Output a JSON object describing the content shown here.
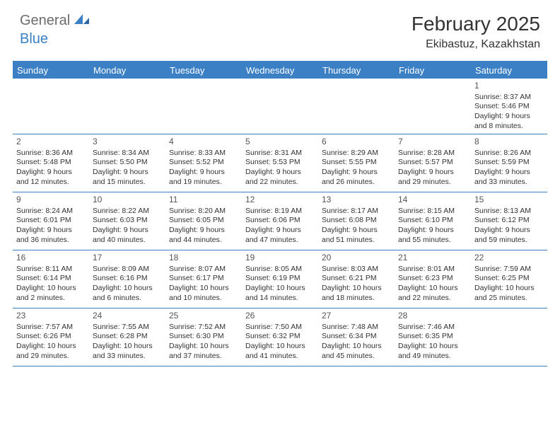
{
  "logo": {
    "text1": "General",
    "text2": "Blue"
  },
  "title": "February 2025",
  "location": "Ekibastuz, Kazakhstan",
  "colors": {
    "accent": "#3b7fc4",
    "logo_gray": "#6b6b6b",
    "text": "#333333",
    "background": "#ffffff"
  },
  "typography": {
    "title_fontsize": 28,
    "location_fontsize": 16,
    "dayheader_fontsize": 13,
    "cell_fontsize": 10.5,
    "daynum_fontsize": 12
  },
  "day_headers": [
    "Sunday",
    "Monday",
    "Tuesday",
    "Wednesday",
    "Thursday",
    "Friday",
    "Saturday"
  ],
  "weeks": [
    [
      null,
      null,
      null,
      null,
      null,
      null,
      {
        "n": "1",
        "sunrise": "8:37 AM",
        "sunset": "5:46 PM",
        "daylight": "9 hours and 8 minutes."
      }
    ],
    [
      {
        "n": "2",
        "sunrise": "8:36 AM",
        "sunset": "5:48 PM",
        "daylight": "9 hours and 12 minutes."
      },
      {
        "n": "3",
        "sunrise": "8:34 AM",
        "sunset": "5:50 PM",
        "daylight": "9 hours and 15 minutes."
      },
      {
        "n": "4",
        "sunrise": "8:33 AM",
        "sunset": "5:52 PM",
        "daylight": "9 hours and 19 minutes."
      },
      {
        "n": "5",
        "sunrise": "8:31 AM",
        "sunset": "5:53 PM",
        "daylight": "9 hours and 22 minutes."
      },
      {
        "n": "6",
        "sunrise": "8:29 AM",
        "sunset": "5:55 PM",
        "daylight": "9 hours and 26 minutes."
      },
      {
        "n": "7",
        "sunrise": "8:28 AM",
        "sunset": "5:57 PM",
        "daylight": "9 hours and 29 minutes."
      },
      {
        "n": "8",
        "sunrise": "8:26 AM",
        "sunset": "5:59 PM",
        "daylight": "9 hours and 33 minutes."
      }
    ],
    [
      {
        "n": "9",
        "sunrise": "8:24 AM",
        "sunset": "6:01 PM",
        "daylight": "9 hours and 36 minutes."
      },
      {
        "n": "10",
        "sunrise": "8:22 AM",
        "sunset": "6:03 PM",
        "daylight": "9 hours and 40 minutes."
      },
      {
        "n": "11",
        "sunrise": "8:20 AM",
        "sunset": "6:05 PM",
        "daylight": "9 hours and 44 minutes."
      },
      {
        "n": "12",
        "sunrise": "8:19 AM",
        "sunset": "6:06 PM",
        "daylight": "9 hours and 47 minutes."
      },
      {
        "n": "13",
        "sunrise": "8:17 AM",
        "sunset": "6:08 PM",
        "daylight": "9 hours and 51 minutes."
      },
      {
        "n": "14",
        "sunrise": "8:15 AM",
        "sunset": "6:10 PM",
        "daylight": "9 hours and 55 minutes."
      },
      {
        "n": "15",
        "sunrise": "8:13 AM",
        "sunset": "6:12 PM",
        "daylight": "9 hours and 59 minutes."
      }
    ],
    [
      {
        "n": "16",
        "sunrise": "8:11 AM",
        "sunset": "6:14 PM",
        "daylight": "10 hours and 2 minutes."
      },
      {
        "n": "17",
        "sunrise": "8:09 AM",
        "sunset": "6:16 PM",
        "daylight": "10 hours and 6 minutes."
      },
      {
        "n": "18",
        "sunrise": "8:07 AM",
        "sunset": "6:17 PM",
        "daylight": "10 hours and 10 minutes."
      },
      {
        "n": "19",
        "sunrise": "8:05 AM",
        "sunset": "6:19 PM",
        "daylight": "10 hours and 14 minutes."
      },
      {
        "n": "20",
        "sunrise": "8:03 AM",
        "sunset": "6:21 PM",
        "daylight": "10 hours and 18 minutes."
      },
      {
        "n": "21",
        "sunrise": "8:01 AM",
        "sunset": "6:23 PM",
        "daylight": "10 hours and 22 minutes."
      },
      {
        "n": "22",
        "sunrise": "7:59 AM",
        "sunset": "6:25 PM",
        "daylight": "10 hours and 25 minutes."
      }
    ],
    [
      {
        "n": "23",
        "sunrise": "7:57 AM",
        "sunset": "6:26 PM",
        "daylight": "10 hours and 29 minutes."
      },
      {
        "n": "24",
        "sunrise": "7:55 AM",
        "sunset": "6:28 PM",
        "daylight": "10 hours and 33 minutes."
      },
      {
        "n": "25",
        "sunrise": "7:52 AM",
        "sunset": "6:30 PM",
        "daylight": "10 hours and 37 minutes."
      },
      {
        "n": "26",
        "sunrise": "7:50 AM",
        "sunset": "6:32 PM",
        "daylight": "10 hours and 41 minutes."
      },
      {
        "n": "27",
        "sunrise": "7:48 AM",
        "sunset": "6:34 PM",
        "daylight": "10 hours and 45 minutes."
      },
      {
        "n": "28",
        "sunrise": "7:46 AM",
        "sunset": "6:35 PM",
        "daylight": "10 hours and 49 minutes."
      },
      null
    ]
  ],
  "labels": {
    "sunrise": "Sunrise:",
    "sunset": "Sunset:",
    "daylight": "Daylight:"
  }
}
